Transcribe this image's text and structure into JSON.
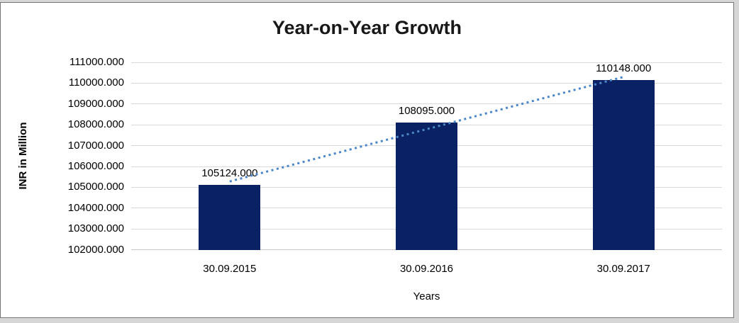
{
  "window": {
    "frame_color": "#d6d6d6",
    "canvas_background": "#ffffff",
    "canvas_border_color": "#767676"
  },
  "chart_data": {
    "type": "bar",
    "title": "Year-on-Year Growth",
    "xlabel": "Years",
    "ylabel": "INR in Million",
    "categories": [
      "30.09.2015",
      "30.09.2016",
      "30.09.2017"
    ],
    "values": [
      105124,
      108095,
      110148
    ],
    "data_labels": [
      "105124.000",
      "108095.000",
      "110148.000"
    ],
    "y_tick_labels": [
      "111000.000",
      "110000.000",
      "109000.000",
      "108000.000",
      "107000.000",
      "106000.000",
      "105000.000",
      "104000.000",
      "103000.000",
      "102000.000"
    ],
    "ylim": [
      102000,
      111000
    ],
    "y_tick_step": 1000,
    "gridlines": "horizontal",
    "legend": "none",
    "bar_color": "#0a2263",
    "gridline_color": "#d9d9d9",
    "trendline": {
      "type": "linear",
      "style": "dotted",
      "color": "#4a86c8",
      "start_value": 105280,
      "end_value": 110300
    }
  }
}
